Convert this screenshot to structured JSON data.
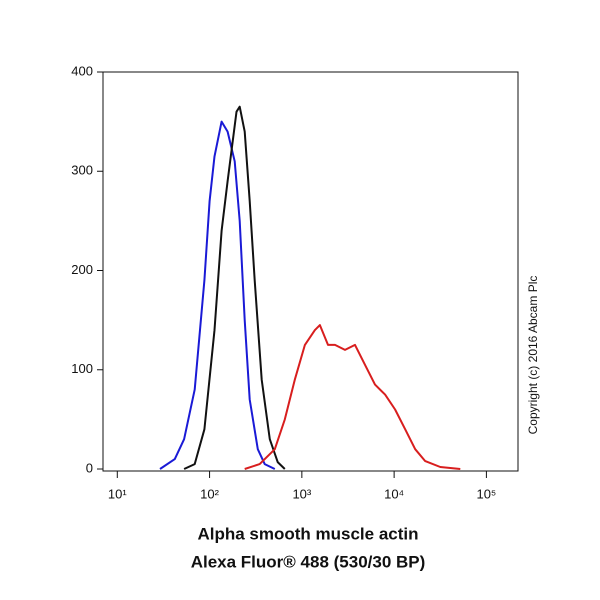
{
  "chart_data": {
    "type": "line",
    "xlabel": "Alpha smooth muscle actin",
    "xlabel2": "Alexa Fluor® 488 (530/30 BP)",
    "annotation": "Copyright (c) 2016 Abcam Plc",
    "xscale": "log",
    "xlim": [
      7,
      220000
    ],
    "ylim": [
      -2,
      400
    ],
    "xticks": [
      {
        "value": 10,
        "label": "10¹"
      },
      {
        "value": 100,
        "label": "10²"
      },
      {
        "value": 1000,
        "label": "10³"
      },
      {
        "value": 10000,
        "label": "10⁴"
      },
      {
        "value": 100000,
        "label": "10⁵"
      }
    ],
    "yticks": [
      0,
      100,
      200,
      300,
      400
    ],
    "grid": false,
    "series": [
      {
        "color": "#1a1ad6",
        "x": [
          29,
          42,
          53,
          69,
          88,
          100,
          113,
          135,
          157,
          187,
          212,
          240,
          272,
          333,
          396,
          509
        ],
        "values": [
          0,
          10,
          30,
          80,
          190,
          270,
          315,
          350,
          340,
          310,
          250,
          150,
          70,
          20,
          5,
          0
        ]
      },
      {
        "color": "#111111",
        "x": [
          53,
          69,
          88,
          113,
          135,
          157,
          196,
          212,
          240,
          272,
          308,
          367,
          449,
          548,
          653
        ],
        "values": [
          0,
          5,
          40,
          140,
          240,
          290,
          360,
          365,
          340,
          270,
          190,
          90,
          30,
          7,
          0
        ]
      },
      {
        "color": "#d81e1e",
        "x": [
          240,
          349,
          509,
          653,
          839,
          1079,
          1384,
          1570,
          1919,
          2286,
          2934,
          3767,
          4838,
          6211,
          7976,
          10250,
          13180,
          16900,
          21730,
          31620,
          52100
        ],
        "values": [
          0,
          5,
          20,
          50,
          90,
          125,
          140,
          145,
          125,
          125,
          120,
          125,
          105,
          85,
          75,
          60,
          40,
          20,
          8,
          2,
          0
        ]
      }
    ]
  }
}
